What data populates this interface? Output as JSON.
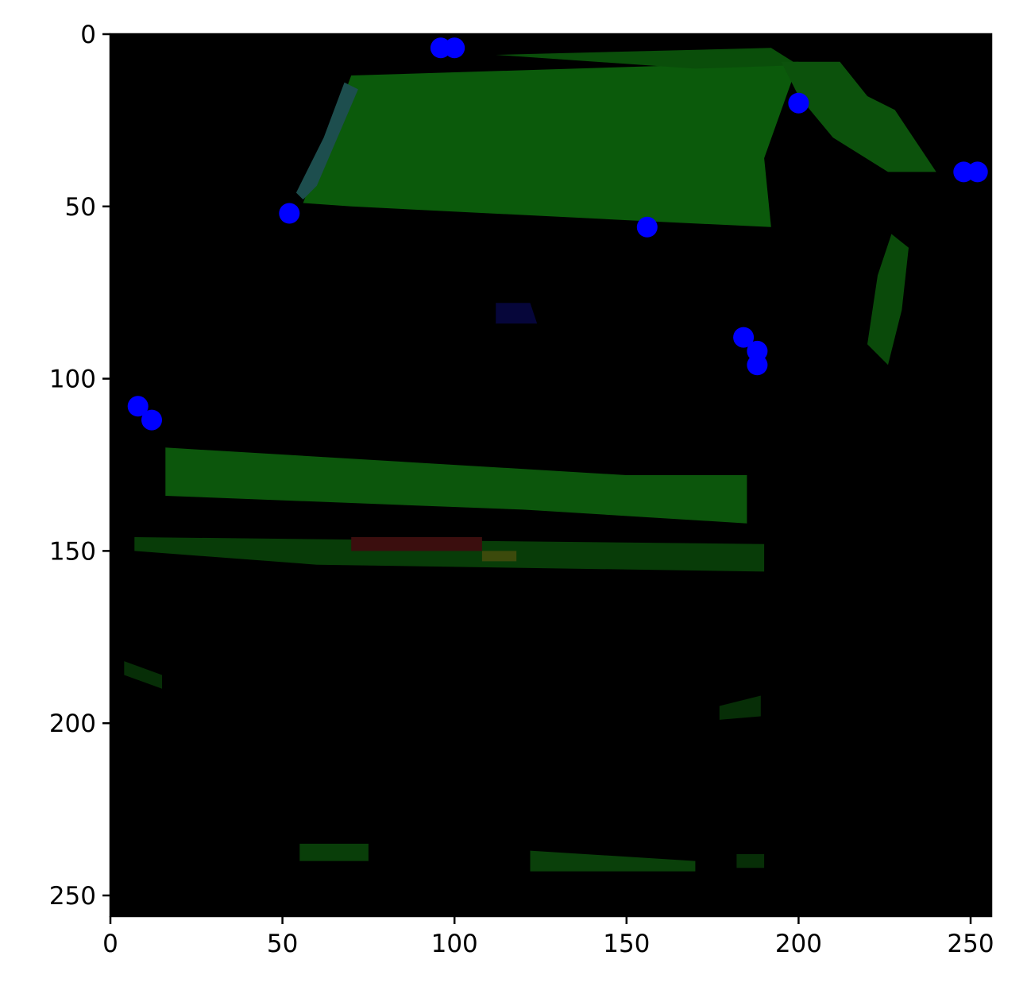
{
  "chart_data": {
    "type": "scatter",
    "title": "",
    "xlabel": "",
    "ylabel": "",
    "xlim": [
      0,
      256
    ],
    "ylim": [
      256,
      0
    ],
    "y_inverted": true,
    "grid": false,
    "x_ticks": [
      {
        "value": 0,
        "label": "0"
      },
      {
        "value": 50,
        "label": "50"
      },
      {
        "value": 100,
        "label": "100"
      },
      {
        "value": 150,
        "label": "150"
      },
      {
        "value": 200,
        "label": "200"
      },
      {
        "value": 250,
        "label": "250"
      }
    ],
    "y_ticks": [
      {
        "value": 0,
        "label": "0"
      },
      {
        "value": 50,
        "label": "50"
      },
      {
        "value": 100,
        "label": "100"
      },
      {
        "value": 150,
        "label": "150"
      },
      {
        "value": 200,
        "label": "200"
      },
      {
        "value": 250,
        "label": "250"
      }
    ],
    "background_image": {
      "base_color": "#000000",
      "regions": [
        {
          "color": "#0b5a0b",
          "points": [
            [
              70,
              12
            ],
            [
              200,
              8
            ],
            [
              190,
              36
            ],
            [
              192,
              56
            ],
            [
              150,
              54
            ],
            [
              70,
              50
            ],
            [
              56,
              49
            ],
            [
              64,
              28
            ]
          ]
        },
        {
          "color": "#0a4e0a",
          "points": [
            [
              112,
              6
            ],
            [
              192,
              4
            ],
            [
              200,
              9
            ],
            [
              170,
              10
            ]
          ]
        },
        {
          "color": "#0c520c",
          "points": [
            [
              195,
              8
            ],
            [
              212,
              8
            ],
            [
              220,
              18
            ],
            [
              228,
              22
            ],
            [
              236,
              34
            ],
            [
              240,
              40
            ],
            [
              226,
              40
            ],
            [
              210,
              30
            ],
            [
              200,
              18
            ]
          ]
        },
        {
          "color": "#1d4e4e",
          "points": [
            [
              68,
              14
            ],
            [
              72,
              16
            ],
            [
              60,
              44
            ],
            [
              56,
              48
            ],
            [
              54,
              46
            ],
            [
              62,
              30
            ]
          ]
        },
        {
          "color": "#0a4a0a",
          "points": [
            [
              227,
              58
            ],
            [
              232,
              62
            ],
            [
              230,
              80
            ],
            [
              226,
              96
            ],
            [
              220,
              90
            ],
            [
              223,
              70
            ]
          ]
        },
        {
          "color": "#0c560c",
          "points": [
            [
              16,
              120
            ],
            [
              150,
              128
            ],
            [
              185,
              128
            ],
            [
              185,
              142
            ],
            [
              120,
              138
            ],
            [
              16,
              134
            ]
          ]
        },
        {
          "color": "#083c08",
          "points": [
            [
              7,
              146
            ],
            [
              190,
              148
            ],
            [
              190,
              156
            ],
            [
              60,
              154
            ],
            [
              7,
              150
            ]
          ]
        },
        {
          "color": "#3b0e0e",
          "points": [
            [
              70,
              146
            ],
            [
              108,
              146
            ],
            [
              108,
              150
            ],
            [
              70,
              150
            ]
          ]
        },
        {
          "color": "#3c4a0c",
          "points": [
            [
              108,
              150
            ],
            [
              118,
              150
            ],
            [
              118,
              153
            ],
            [
              108,
              153
            ]
          ]
        },
        {
          "color": "#0a400a",
          "points": [
            [
              122,
              237
            ],
            [
              170,
              240
            ],
            [
              170,
              243
            ],
            [
              122,
              243
            ]
          ]
        },
        {
          "color": "#093e09",
          "points": [
            [
              55,
              235
            ],
            [
              75,
              235
            ],
            [
              75,
              240
            ],
            [
              55,
              240
            ]
          ]
        },
        {
          "color": "#072e07",
          "points": [
            [
              4,
              182
            ],
            [
              15,
              186
            ],
            [
              15,
              190
            ],
            [
              4,
              186
            ]
          ]
        },
        {
          "color": "#072e07",
          "points": [
            [
              177,
              195
            ],
            [
              189,
              192
            ],
            [
              189,
              198
            ],
            [
              177,
              199
            ]
          ]
        },
        {
          "color": "#072e07",
          "points": [
            [
              182,
              238
            ],
            [
              190,
              238
            ],
            [
              190,
              242
            ],
            [
              182,
              242
            ]
          ]
        },
        {
          "color": "#06063a",
          "points": [
            [
              112,
              78
            ],
            [
              122,
              78
            ],
            [
              124,
              84
            ],
            [
              112,
              84
            ]
          ]
        }
      ]
    },
    "series": [
      {
        "color": "#0000ff",
        "points": [
          {
            "x": 96,
            "y": 4
          },
          {
            "x": 100,
            "y": 4
          },
          {
            "x": 200,
            "y": 20
          },
          {
            "x": 248,
            "y": 40
          },
          {
            "x": 252,
            "y": 40
          },
          {
            "x": 52,
            "y": 52
          },
          {
            "x": 156,
            "y": 56
          },
          {
            "x": 184,
            "y": 88
          },
          {
            "x": 188,
            "y": 92
          },
          {
            "x": 188,
            "y": 96
          },
          {
            "x": 8,
            "y": 108
          },
          {
            "x": 12,
            "y": 112
          }
        ]
      }
    ]
  }
}
